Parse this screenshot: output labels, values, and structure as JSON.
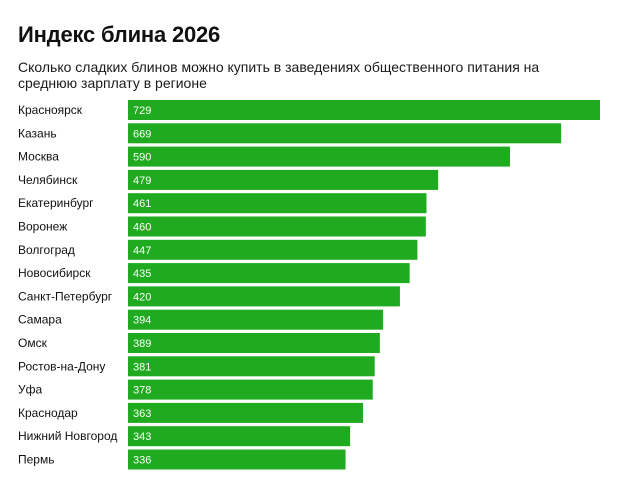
{
  "chart_data": {
    "type": "bar",
    "orientation": "horizontal",
    "title": "Индекс блина 2026",
    "subtitle": "Сколько сладких блинов можно купить в заведениях общественного питания на среднюю зарплату в регионе",
    "categories": [
      "Красноярск",
      "Казань",
      "Москва",
      "Челябинск",
      "Екатеринбург",
      "Воронеж",
      "Волгоград",
      "Новосибирск",
      "Санкт-Петербург",
      "Самара",
      "Омск",
      "Ростов-на-Дону",
      "Уфа",
      "Краснодар",
      "Нижний Новгород",
      "Пермь"
    ],
    "values": [
      729,
      669,
      590,
      479,
      461,
      460,
      447,
      435,
      420,
      394,
      389,
      381,
      378,
      363,
      343,
      336
    ],
    "xlim": [
      0,
      729
    ],
    "grid": false,
    "legend": "none",
    "bar_color": "#1faa1f",
    "value_label_color": "#ffffff"
  }
}
